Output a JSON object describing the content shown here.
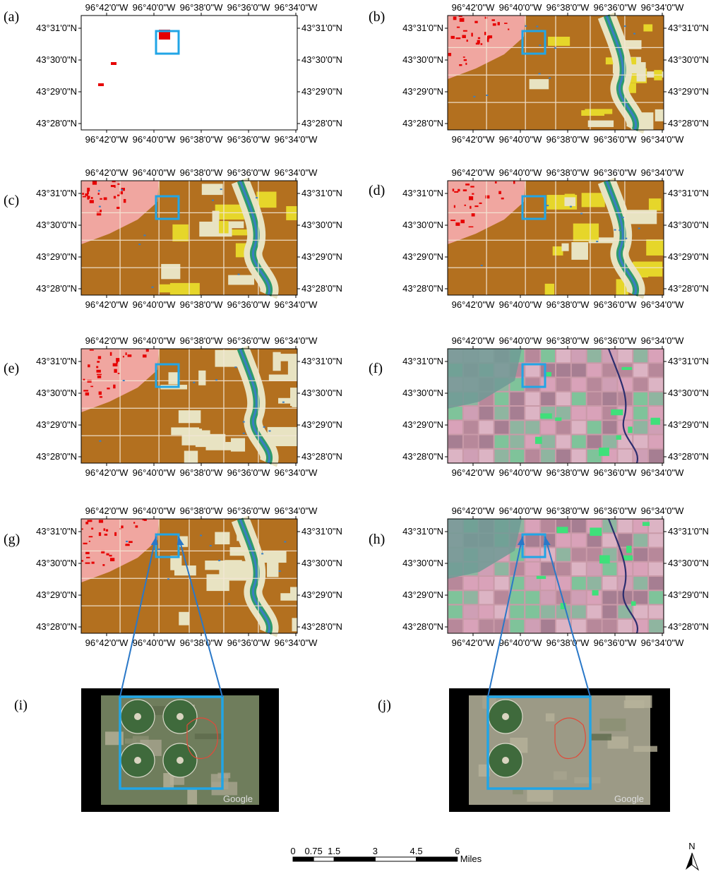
{
  "figure": {
    "panels": [
      {
        "label": "(a)",
        "style": "empty"
      },
      {
        "label": "(b)",
        "style": "landcover"
      },
      {
        "label": "(c)",
        "style": "landcover"
      },
      {
        "label": "(d)",
        "style": "landcover"
      },
      {
        "label": "(e)",
        "style": "landcover"
      },
      {
        "label": "(f)",
        "style": "falsecolor"
      },
      {
        "label": "(g)",
        "style": "landcover"
      },
      {
        "label": "(h)",
        "style": "falsecolor"
      }
    ],
    "insets": [
      {
        "label": "(i)",
        "watermark": "Google"
      },
      {
        "label": "(j)",
        "watermark": "Google"
      }
    ],
    "lon_ticks": [
      "96°42'0\"W",
      "96°40'0\"W",
      "96°38'0\"W",
      "96°36'0\"W",
      "96°34'0\"W"
    ],
    "lat_ticks": [
      "43°31'0\"N",
      "43°30'0\"N",
      "43°29'0\"N",
      "43°28'0\"N"
    ]
  },
  "scalebar": {
    "labels": [
      "0",
      "0.75",
      "1.5",
      "3",
      "4.5",
      "6"
    ],
    "unit": "Miles"
  },
  "north_arrow": {
    "label": "N"
  },
  "colors": {
    "crop": "#b3701f",
    "urban": "#e60000",
    "developed_light": "#f0a6a0",
    "grass": "#e8e3c2",
    "yellow": "#e6d62a",
    "wetland": "#2e9b6c",
    "water": "#3a7ec2",
    "highlight_box": "#21a5e6",
    "zoom_line": "#2a78c8"
  }
}
